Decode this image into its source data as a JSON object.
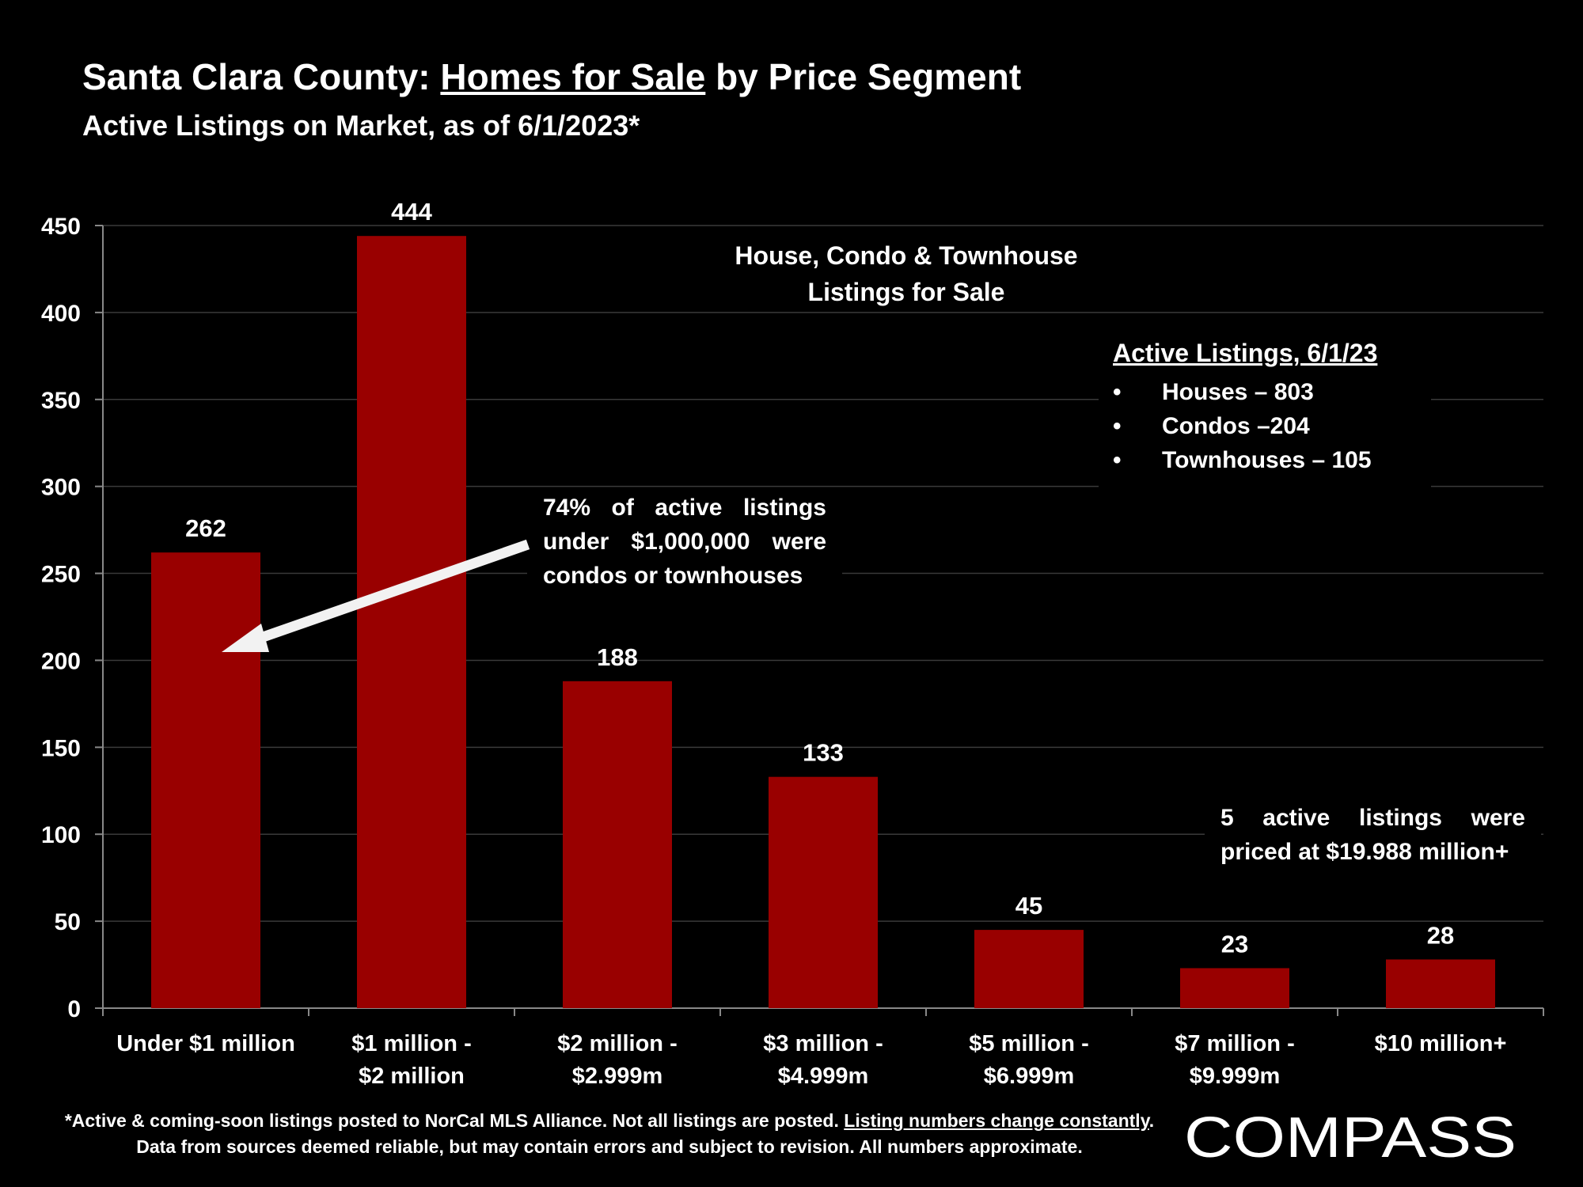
{
  "header": {
    "title_prefix": "Santa Clara County: ",
    "title_underlined": "Homes for Sale",
    "title_suffix": " by Price Segment",
    "subtitle": "Active Listings on Market, as of 6/1/2023*"
  },
  "chart_data": {
    "type": "bar",
    "title": "House, Condo & Townhouse Listings for Sale",
    "title_lines": [
      "House, Condo & Townhouse",
      "Listings for Sale"
    ],
    "categories": [
      "Under $1 million",
      "$1 million - $2 million",
      "$2 million - $2.999m",
      "$3 million - $4.999m",
      "$5 million - $6.999m",
      "$7 million - $9.999m",
      "$10 million+"
    ],
    "category_lines": [
      [
        "Under $1 million"
      ],
      [
        "$1 million -",
        "$2 million"
      ],
      [
        "$2 million -",
        "$2.999m"
      ],
      [
        "$3 million -",
        "$4.999m"
      ],
      [
        "$5 million -",
        "$6.999m"
      ],
      [
        "$7 million -",
        "$9.999m"
      ],
      [
        "$10 million+"
      ]
    ],
    "values": [
      262,
      444,
      188,
      133,
      45,
      23,
      28
    ],
    "value_labels": [
      "262",
      "444",
      "188",
      "133",
      "45",
      "23",
      "28"
    ],
    "ylim": [
      0,
      450
    ],
    "yticks": [
      0,
      50,
      100,
      150,
      200,
      250,
      300,
      350,
      400,
      450
    ],
    "grid": true,
    "bar_color": "#990000",
    "xlabel": "",
    "ylabel": ""
  },
  "legend": {
    "heading": "Active Listings, 6/1/23",
    "items": [
      {
        "bullet": "•",
        "label": "Houses – 803"
      },
      {
        "bullet": "•",
        "label": "Condos –204"
      },
      {
        "bullet": "•",
        "label": "Townhouses – 105"
      }
    ]
  },
  "annotations": {
    "note1": "74% of active listings under $1,000,000 were condos or townhouses",
    "note2": "5 active listings were priced at $19.988 million+"
  },
  "footnote": {
    "part1": "*Active & coming-soon listings posted to NorCal MLS Alliance. Not all listings are posted. ",
    "part2_underlined": "Listing numbers change constantly",
    "part3": ". Data from sources deemed reliable, but may contain errors and subject to revision. All numbers approximate."
  },
  "logo": {
    "text": "COMPASS"
  },
  "colors": {
    "background": "#000000",
    "bar": "#990000",
    "text": "#ffffff",
    "arrow": "#f2f2f2",
    "grid": "#3a3a3a"
  }
}
